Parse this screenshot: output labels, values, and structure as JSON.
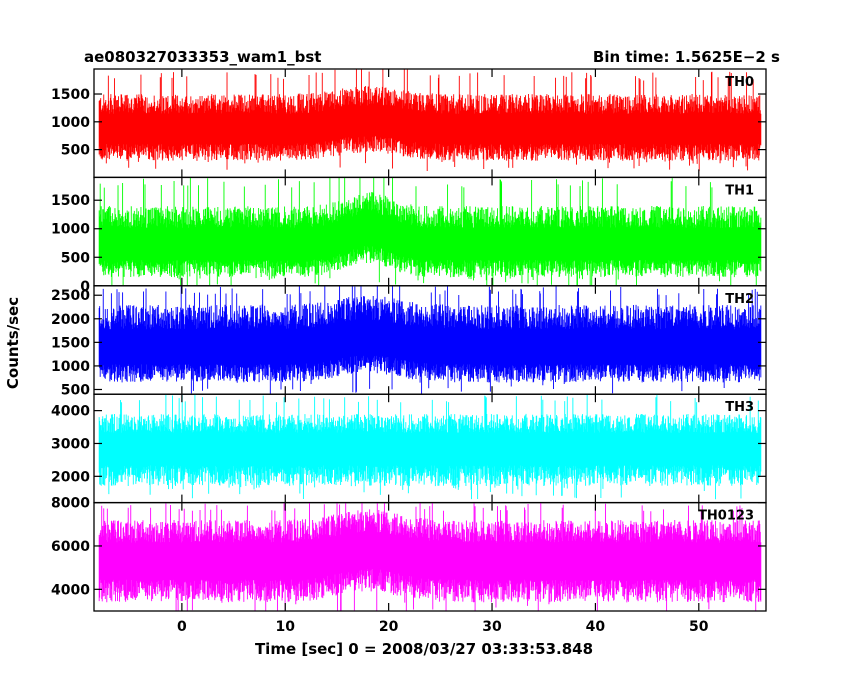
{
  "chart_data": {
    "type": "line",
    "title_left": "ae080327033353_wam1_bst",
    "title_right": "Bin time: 1.5625E−2 s",
    "xlabel": "Time [sec] 0 = 2008/03/27 03:33:53.848",
    "ylabel": "Counts/sec",
    "xlim": [
      -8.5,
      56.5
    ],
    "x_data_range": [
      -8,
      56
    ],
    "x_ticks": [
      0,
      10,
      20,
      30,
      40,
      50
    ],
    "panels": [
      {
        "name": "TH0",
        "color": "#ff0000",
        "ylim": [
          0,
          1950
        ],
        "y_ticks": [
          500,
          1000,
          1500
        ],
        "mean": 850,
        "low": 300,
        "high": 1500,
        "peak_high": 1900,
        "bump": {
          "center": 18,
          "width": 4,
          "amount": 150
        }
      },
      {
        "name": "TH1",
        "color": "#00ff00",
        "ylim": [
          0,
          1900
        ],
        "y_ticks": [
          0,
          500,
          1000,
          1500
        ],
        "mean": 700,
        "low": 150,
        "high": 1400,
        "peak_high": 1900,
        "bump": {
          "center": 18,
          "width": 3,
          "amount": 250
        }
      },
      {
        "name": "TH2",
        "color": "#0000ff",
        "ylim": [
          400,
          2700
        ],
        "y_ticks": [
          500,
          1000,
          1500,
          2000,
          2500
        ],
        "mean": 1350,
        "low": 650,
        "high": 2300,
        "peak_high": 2700,
        "bump": {
          "center": 18,
          "width": 4,
          "amount": 200
        }
      },
      {
        "name": "TH3",
        "color": "#00ffff",
        "ylim": [
          1200,
          4500
        ],
        "y_ticks": [
          2000,
          3000,
          4000
        ],
        "mean": 2850,
        "low": 1700,
        "high": 3900,
        "peak_high": 4500,
        "bump": {
          "center": 18,
          "width": 4,
          "amount": 0
        }
      },
      {
        "name": "TH0123",
        "color": "#ff00ff",
        "ylim": [
          3000,
          8000
        ],
        "y_ticks": [
          4000,
          6000,
          8000
        ],
        "mean": 5300,
        "low": 3400,
        "high": 7200,
        "peak_high": 8000,
        "bump": {
          "center": 18,
          "width": 4,
          "amount": 500
        }
      }
    ]
  }
}
